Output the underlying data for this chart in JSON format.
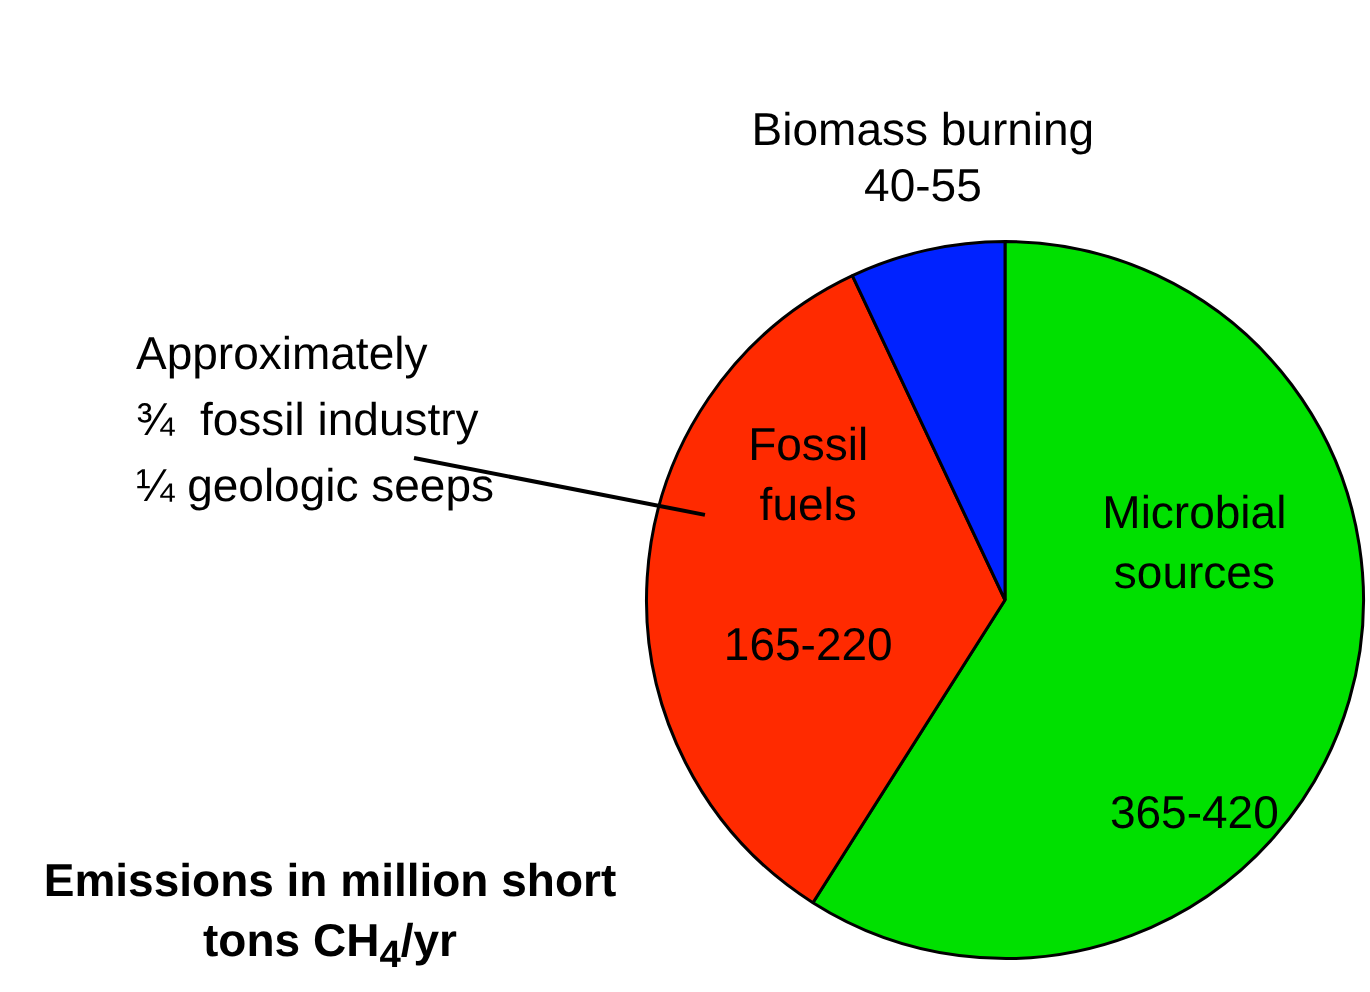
{
  "chart_data": {
    "type": "pie",
    "title": "Emissions in million short tons CH$_{4}$/yr",
    "categories": [
      "Microbial sources",
      "Fossil fuels",
      "Biomass burning"
    ],
    "values": [
      59,
      34,
      7
    ],
    "colors": [
      "#00e000",
      "#ff2a00",
      "#0022ff"
    ],
    "value_labels": [
      "365-420",
      "165-220",
      "40-55"
    ],
    "annotations": [
      "Approximately\n¾  fossil industry\n¼ geologic seeps"
    ],
    "legend": false
  }
}
